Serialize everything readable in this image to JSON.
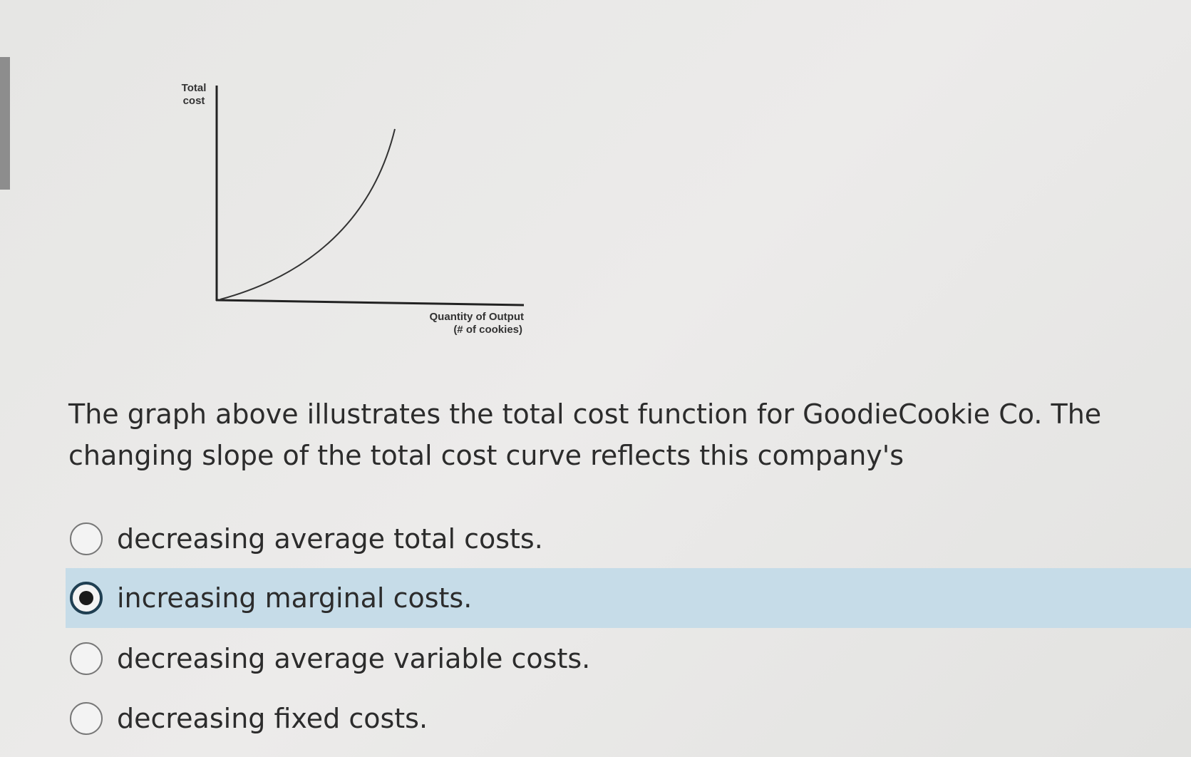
{
  "figure": {
    "y_label": [
      "Total",
      "cost"
    ],
    "x_label": [
      "Quantity of Output",
      "(# of cookies)"
    ]
  },
  "question": {
    "text": "The graph above illustrates the total cost function for GoodieCookie Co. The changing slope of the total cost curve reflects this company's",
    "options": [
      "decreasing average total costs.",
      "increasing marginal costs.",
      "decreasing average variable costs.",
      "decreasing fixed costs."
    ],
    "selected": 1
  }
}
